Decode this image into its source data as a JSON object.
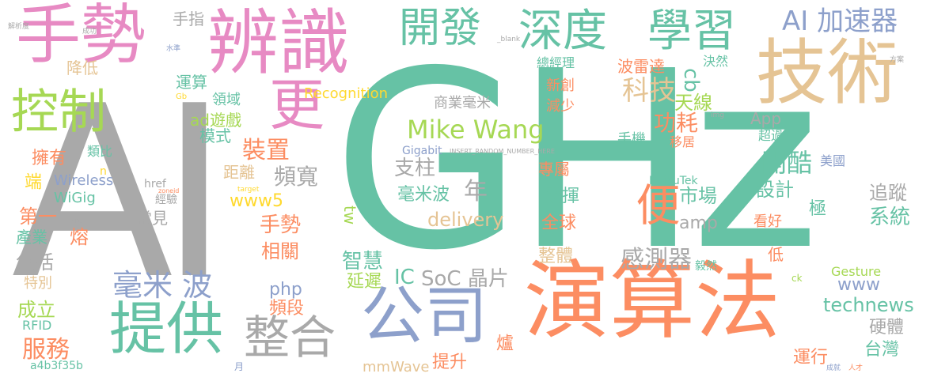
{
  "colors": {
    "background": "#ffffff",
    "gray": "#a9a9a9",
    "teal": "#66c2a5",
    "pink": "#e78ac3",
    "orange": "#fc8d62",
    "blue": "#8da0cb",
    "green": "#a6d854",
    "yellow": "#ffd92f",
    "tan": "#e5c494"
  },
  "words": {
    "ai": "AI",
    "ghz": "GHz",
    "shoushi": "手勢",
    "bianshi": "辨識",
    "kongzhi": "控制",
    "geng": "更",
    "kaifa": "開發",
    "shendu": "深度",
    "xuexi": "學習",
    "jishu": "技術",
    "ai_jiasuqi": "AI 加速器",
    "yansuanfa": "演算法",
    "gongsi": "公司",
    "tigong": "提供",
    "zhenghe": "整合",
    "haomibo_split": "毫米 波",
    "bian": "便",
    "mike_wang": "Mike Wang",
    "kemeji": "科技",
    "zhuangzhi": "裝置",
    "pinkuan": "頻寬",
    "gongyao": "功耗",
    "tianxian": "天線",
    "cb": "cb",
    "kaiku": "開酷",
    "sheji": "設計",
    "zhuizong": "追蹤",
    "xitong": "系統",
    "ganceqi": "感測器",
    "zhihui": "智慧",
    "yanchi": "延遲",
    "soc_jingpian": "SoC 晶片",
    "ic": "IC",
    "technews": "technews",
    "yingti": "硬體",
    "taiwan": "台灣",
    "fuwu": "服務",
    "chengli": "成立",
    "pinduan": "頻段",
    "php": "php",
    "www": "www",
    "gesture": "Gesture",
    "recognition": "Recognition",
    "mmwave": "mmWave",
    "tisheng": "提升",
    "luzao": "爐",
    "yunxing": "運行",
    "shouzhi": "手指",
    "jiangdi": "降低",
    "yunsuan": "運算",
    "lingyu": "領域",
    "ad_youxi": "ad遊戲",
    "moshi": "模式",
    "yongyou": "擁有",
    "leibi": "類比",
    "wireless": "Wireless",
    "wigig": "WiGig",
    "duan": "端",
    "diyi": "第一",
    "rong": "熔",
    "chanye": "產業",
    "baokuo": "包括",
    "tebie": "特別",
    "rfid": "RFID",
    "a4b3f35b": "a4b3f35b",
    "juli": "距離",
    "www5": "www5",
    "changjian": "常見",
    "jingyan": "經驗",
    "href": "href",
    "xiangguan": "相關",
    "zhizhu": "支柱",
    "nian": "年",
    "haomibo": "毫米波",
    "delivery": "delivery",
    "tw": "tw",
    "quanqiu": "全球",
    "fahui": "發揮",
    "shichang": "市場",
    "zhuanshu": "專屬",
    "zhengti": "整體",
    "amp": "amp",
    "ji": "極",
    "kanhao": "看好",
    "di": "低",
    "meiguo": "美國",
    "chaoyue": "超過",
    "app": "App",
    "shouji": "手機",
    "yiju": "移居",
    "qianjing": "前景",
    "gigabit": "Gigabit",
    "kaikutek": "KaiKuTek",
    "insert_random": "INSERT_RANDOM_NUMBER_HERE",
    "shangye_haomi": "商業毫米",
    "jianshao": "減少",
    "xinchuang": "新創",
    "zongjingli": "總經理",
    "boleida": "波雷達",
    "juere": "決然",
    "yiran": "毅然",
    "ck": "ck",
    "n": "n",
    "yue": "月",
    "blank": "_blank",
    "target": "target",
    "zoneid": "zoneid",
    "gb": "Gb",
    "img": "img",
    "src": "src",
    "shuizhun": "水準",
    "chenggong": "成功",
    "jiexi": "解析度",
    "rencai": "人才",
    "fangan": "方案",
    "chengjiu": "成就"
  }
}
